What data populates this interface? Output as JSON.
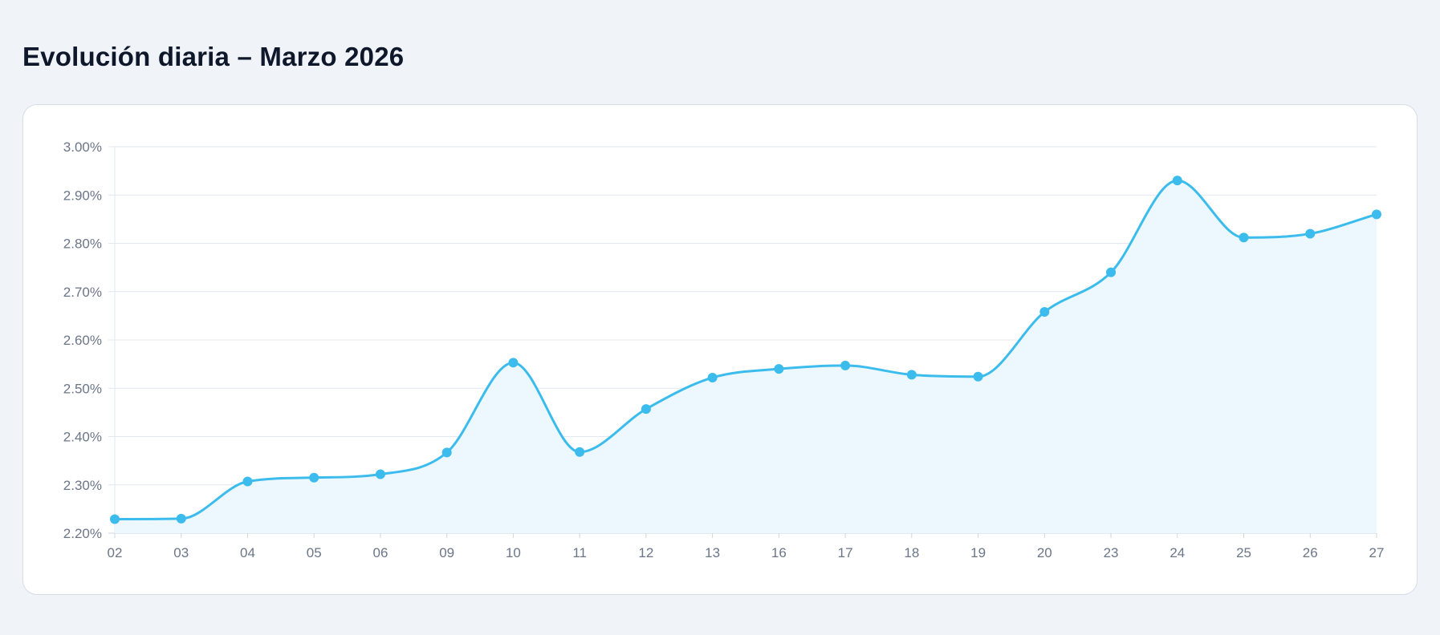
{
  "page": {
    "title": "Evolución diaria – Marzo 2026"
  },
  "chart_data": {
    "type": "area",
    "title": "Evolución diaria – Marzo 2026",
    "xlabel": "",
    "ylabel": "",
    "x": [
      "02",
      "03",
      "04",
      "05",
      "06",
      "09",
      "10",
      "11",
      "12",
      "13",
      "16",
      "17",
      "18",
      "19",
      "20",
      "23",
      "24",
      "25",
      "26",
      "27"
    ],
    "y_ticks": [
      "2.20%",
      "2.30%",
      "2.40%",
      "2.50%",
      "2.60%",
      "2.70%",
      "2.80%",
      "2.90%",
      "3.00%"
    ],
    "ylim": [
      2.2,
      3.0
    ],
    "grid": true,
    "legend": "none",
    "series": [
      {
        "values": [
          2.229,
          2.23,
          2.307,
          2.315,
          2.322,
          2.367,
          2.553,
          2.368,
          2.457,
          2.522,
          2.54,
          2.547,
          2.528,
          2.524,
          2.658,
          2.74,
          2.93,
          2.812,
          2.82,
          2.86
        ],
        "color": "#3bbcec",
        "fill": "#ecf8fd"
      }
    ],
    "grid_color": "#e3e8ef",
    "axis_color": "#cfd6df"
  }
}
